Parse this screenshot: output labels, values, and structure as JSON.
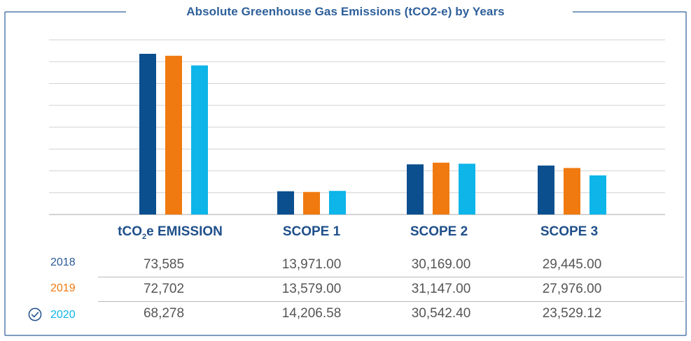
{
  "chart_data": {
    "type": "bar",
    "title": "Absolute Greenhouse Gas Emissions (tCO2-e) by Years",
    "categories": [
      "EMISSION",
      "SCOPE 1",
      "SCOPE 2",
      "SCOPE 3"
    ],
    "category_prefix": {
      "main": "tCO",
      "sub": "2",
      "suffix": "e "
    },
    "series": [
      {
        "name": "2018",
        "values": [
          73585,
          13971.0,
          30169.0,
          29445.0
        ]
      },
      {
        "name": "2019",
        "values": [
          72702,
          13579.0,
          31147.0,
          27976.0
        ]
      },
      {
        "name": "2020",
        "values": [
          68278,
          14206.58,
          30542.4,
          23529.12
        ]
      }
    ],
    "ylim": [
      0,
      80000
    ],
    "grid": true,
    "legend": "table-below",
    "colors": [
      "#0b4f8f",
      "#f07a10",
      "#0db5e8"
    ],
    "secondary_scale": {
      "categories": [
        "SCOPE 1",
        "SCOPE 2",
        "SCOPE 3"
      ],
      "ylim": [
        0,
        105000
      ]
    }
  },
  "table": {
    "rows": [
      {
        "year": "2018",
        "values": [
          "73,585",
          "13,971.00",
          "30,169.00",
          "29,445.00"
        ]
      },
      {
        "year": "2019",
        "values": [
          "72,702",
          "13,579.00",
          "31,147.00",
          "27,976.00"
        ]
      },
      {
        "year": "2020",
        "values": [
          "68,278",
          "14,206.58",
          "30,542.40",
          "23,529.12"
        ]
      }
    ],
    "year_colors": [
      "#2a5a95",
      "#f07a10",
      "#0db5e8"
    ],
    "selected_row_icon": "check-circle-icon"
  },
  "frame_color": "#2e5f9a"
}
